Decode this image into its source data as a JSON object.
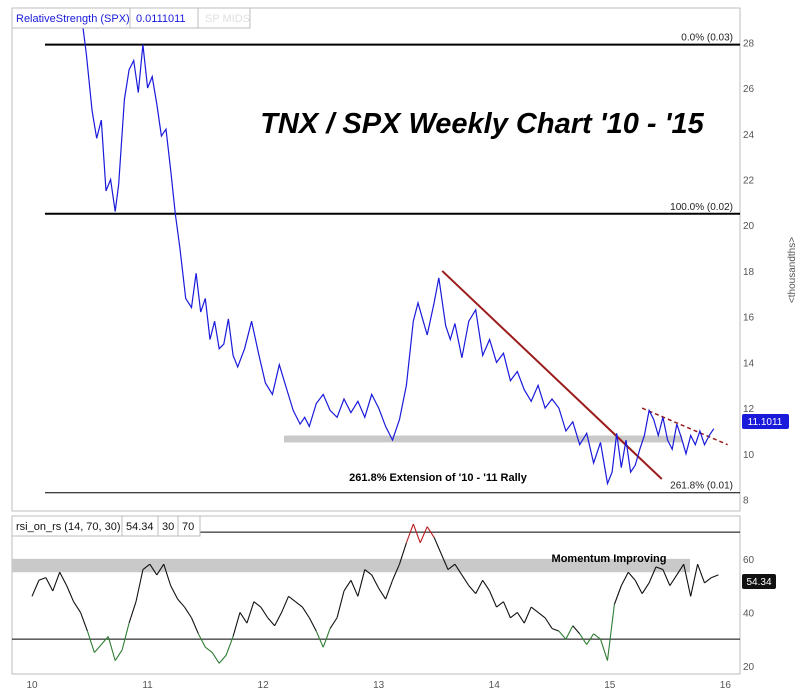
{
  "colors": {
    "price_line": "#1a1adb",
    "rsi_line": "#111111",
    "trendline": "#9b1c1c",
    "support_band": "#c9c9c9",
    "rsi_oversold": "#2e7d32",
    "rsi_overbought": "#b71c1c",
    "value_tag": "#1a1adb"
  },
  "chart_data": [
    {
      "type": "line",
      "title": "TNX / SPX Weekly Chart '10 - '15",
      "legend": {
        "name": "RelativeStrength (SPX)",
        "value": "0.0111011",
        "extra": "SP MIDS"
      },
      "ylabel": "<thousandths>",
      "ylim": [
        7.5,
        29.5
      ],
      "yticks": [
        "8",
        "10",
        "12",
        "14",
        "16",
        "18",
        "20",
        "22",
        "24",
        "26",
        "28"
      ],
      "xlim": [
        10.0,
        16.3
      ],
      "last_value_label": "11.1011",
      "series": [
        {
          "name": "RelativeStrength (SPX)",
          "x": [
            10.42,
            10.47,
            10.52,
            10.56,
            10.6,
            10.64,
            10.68,
            10.72,
            10.75,
            10.8,
            10.84,
            10.88,
            10.92,
            10.96,
            11.0,
            11.04,
            11.08,
            11.12,
            11.16,
            11.2,
            11.24,
            11.28,
            11.33,
            11.38,
            11.42,
            11.46,
            11.5,
            11.54,
            11.58,
            11.62,
            11.66,
            11.7,
            11.74,
            11.78,
            11.84,
            11.9,
            11.96,
            12.02,
            12.08,
            12.14,
            12.2,
            12.26,
            12.32,
            12.36,
            12.4,
            12.46,
            12.52,
            12.58,
            12.64,
            12.7,
            12.76,
            12.82,
            12.88,
            12.94,
            13.0,
            13.06,
            13.12,
            13.18,
            13.24,
            13.3,
            13.34,
            13.38,
            13.42,
            13.48,
            13.52,
            13.58,
            13.62,
            13.66,
            13.72,
            13.78,
            13.84,
            13.9,
            13.96,
            14.02,
            14.08,
            14.14,
            14.2,
            14.26,
            14.32,
            14.38,
            14.44,
            14.5,
            14.56,
            14.62,
            14.68,
            14.74,
            14.8,
            14.86,
            14.92,
            14.98,
            15.02,
            15.06,
            15.1,
            15.14,
            15.18,
            15.22,
            15.26,
            15.3,
            15.34,
            15.38,
            15.42,
            15.46,
            15.5,
            15.54,
            15.58,
            15.62,
            15.66,
            15.7,
            15.74,
            15.78,
            15.82,
            15.86,
            15.9
          ],
          "values": [
            29.5,
            27.5,
            25.0,
            23.8,
            24.6,
            21.5,
            22.0,
            20.6,
            21.8,
            25.5,
            26.8,
            27.2,
            25.8,
            27.9,
            26.0,
            26.5,
            25.3,
            23.9,
            24.2,
            22.4,
            20.5,
            19.0,
            16.8,
            16.4,
            17.9,
            16.2,
            16.8,
            15.0,
            15.8,
            14.6,
            14.8,
            15.9,
            14.3,
            13.8,
            14.6,
            15.8,
            14.4,
            13.1,
            12.6,
            13.9,
            12.9,
            11.9,
            11.3,
            11.6,
            11.2,
            12.2,
            12.6,
            11.9,
            11.6,
            12.4,
            11.8,
            12.3,
            11.6,
            12.6,
            12.0,
            11.2,
            10.6,
            11.5,
            13.0,
            15.8,
            16.6,
            15.9,
            15.2,
            16.6,
            17.7,
            15.6,
            15.0,
            15.7,
            14.2,
            15.8,
            16.3,
            14.3,
            15.0,
            14.0,
            14.4,
            13.2,
            13.6,
            12.8,
            12.3,
            13.0,
            12.0,
            12.4,
            12.0,
            11.0,
            11.4,
            10.4,
            10.9,
            9.6,
            10.5,
            8.7,
            9.2,
            10.9,
            9.4,
            10.6,
            9.2,
            9.5,
            10.2,
            10.8,
            11.9,
            11.5,
            10.8,
            11.6,
            10.6,
            10.2,
            11.3,
            10.7,
            10.0,
            10.8,
            10.4,
            11.0,
            10.4,
            10.8,
            11.1
          ]
        }
      ],
      "levels": [
        {
          "value": 27.9,
          "label": "0.0%  (0.03)"
        },
        {
          "value": 20.5,
          "label": "100.0%  (0.02)"
        },
        {
          "value": 8.3,
          "label": "261.8%  (0.01)"
        }
      ],
      "level_note": "261.8% Extension of '10 - '11 Rally",
      "support_band": [
        10.5,
        10.8
      ],
      "trendline": {
        "x": [
          13.55,
          15.45
        ],
        "y": [
          18.0,
          8.9
        ]
      },
      "short_trendline": {
        "x": [
          15.28,
          16.02
        ],
        "y": [
          12.0,
          10.4
        ]
      }
    },
    {
      "type": "line",
      "legend": {
        "name": "rsi_on_rs (14, 70, 30)",
        "value": "54.34",
        "params": [
          "30",
          "70"
        ]
      },
      "ylim": [
        17,
        76
      ],
      "yticks": [
        "20",
        "40",
        "60"
      ],
      "xticks": [
        "10",
        "11",
        "12",
        "13",
        "14",
        "15",
        "16"
      ],
      "overbought": 70,
      "oversold": 30,
      "band": [
        55,
        60
      ],
      "band_label": "Momentum Improving",
      "last_value_label": "54.34",
      "series": [
        {
          "name": "rsi_on_rs",
          "x": [
            10.0,
            10.06,
            10.12,
            10.18,
            10.24,
            10.3,
            10.36,
            10.42,
            10.48,
            10.54,
            10.6,
            10.66,
            10.72,
            10.78,
            10.84,
            10.9,
            10.96,
            11.02,
            11.08,
            11.14,
            11.2,
            11.26,
            11.32,
            11.38,
            11.44,
            11.5,
            11.56,
            11.62,
            11.68,
            11.74,
            11.8,
            11.86,
            11.92,
            11.98,
            12.04,
            12.1,
            12.16,
            12.22,
            12.28,
            12.34,
            12.4,
            12.46,
            12.52,
            12.58,
            12.64,
            12.7,
            12.76,
            12.82,
            12.88,
            12.94,
            13.0,
            13.06,
            13.12,
            13.18,
            13.24,
            13.3,
            13.36,
            13.42,
            13.48,
            13.54,
            13.6,
            13.66,
            13.72,
            13.78,
            13.84,
            13.9,
            13.96,
            14.02,
            14.08,
            14.14,
            14.2,
            14.26,
            14.32,
            14.38,
            14.44,
            14.5,
            14.56,
            14.62,
            14.68,
            14.74,
            14.8,
            14.86,
            14.92,
            14.98,
            15.04,
            15.1,
            15.16,
            15.22,
            15.28,
            15.34,
            15.4,
            15.46,
            15.52,
            15.58,
            15.64,
            15.7,
            15.76,
            15.82,
            15.88,
            15.94
          ],
          "values": [
            46,
            52,
            53,
            48,
            55,
            50,
            44,
            40,
            33,
            25,
            28,
            31,
            22,
            26,
            36,
            44,
            56,
            58,
            54,
            58,
            50,
            45,
            42,
            38,
            32,
            27,
            25,
            21,
            24,
            31,
            40,
            36,
            44,
            42,
            38,
            35,
            40,
            46,
            44,
            42,
            38,
            33,
            27,
            34,
            38,
            48,
            52,
            46,
            56,
            54,
            49,
            45,
            52,
            58,
            66,
            73,
            66,
            72,
            68,
            62,
            56,
            58,
            54,
            50,
            47,
            52,
            48,
            42,
            44,
            38,
            40,
            36,
            42,
            40,
            38,
            34,
            33,
            30,
            35,
            32,
            28,
            32,
            30,
            22,
            43,
            50,
            55,
            52,
            47,
            51,
            57,
            56,
            50,
            54,
            58,
            46,
            58,
            51,
            53,
            54
          ]
        }
      ]
    }
  ]
}
